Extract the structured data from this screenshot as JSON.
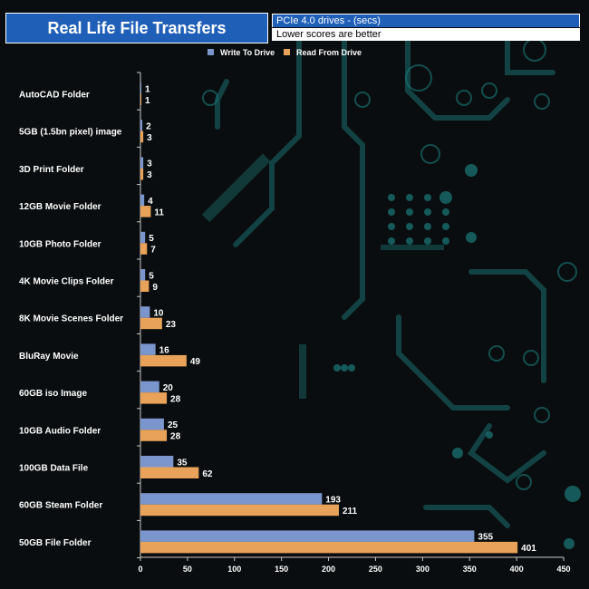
{
  "header": {
    "title": "Real Life File Transfers",
    "subtitle": "PCIe 4.0 drives - (secs)",
    "note": "Lower scores are better"
  },
  "colors": {
    "write": "#7b96cc",
    "read": "#e8a25a",
    "title_bg": "#1f5fb8",
    "circuit": "#1a6f6f"
  },
  "chart_data": {
    "type": "bar",
    "orientation": "horizontal",
    "categories": [
      "AutoCAD Folder",
      "5GB (1.5bn pixel) image",
      "3D Print Folder",
      "12GB Movie Folder",
      "10GB Photo Folder",
      "4K Movie Clips Folder",
      "8K Movie Scenes Folder",
      "BluRay Movie",
      "60GB iso Image",
      "10GB Audio Folder",
      "100GB Data File",
      "60GB Steam Folder",
      "50GB File Folder"
    ],
    "series": [
      {
        "name": "Write To  Drive",
        "values": [
          1,
          2,
          3,
          4,
          5,
          5,
          10,
          16,
          20,
          25,
          35,
          193,
          355
        ]
      },
      {
        "name": "Read From  Drive",
        "values": [
          1,
          3,
          3,
          11,
          7,
          9,
          23,
          49,
          28,
          28,
          62,
          211,
          401
        ]
      }
    ],
    "xlim": [
      0,
      450
    ],
    "xticks": [
      0,
      50,
      100,
      150,
      200,
      250,
      300,
      350,
      400,
      450
    ],
    "legend": "top-center"
  }
}
